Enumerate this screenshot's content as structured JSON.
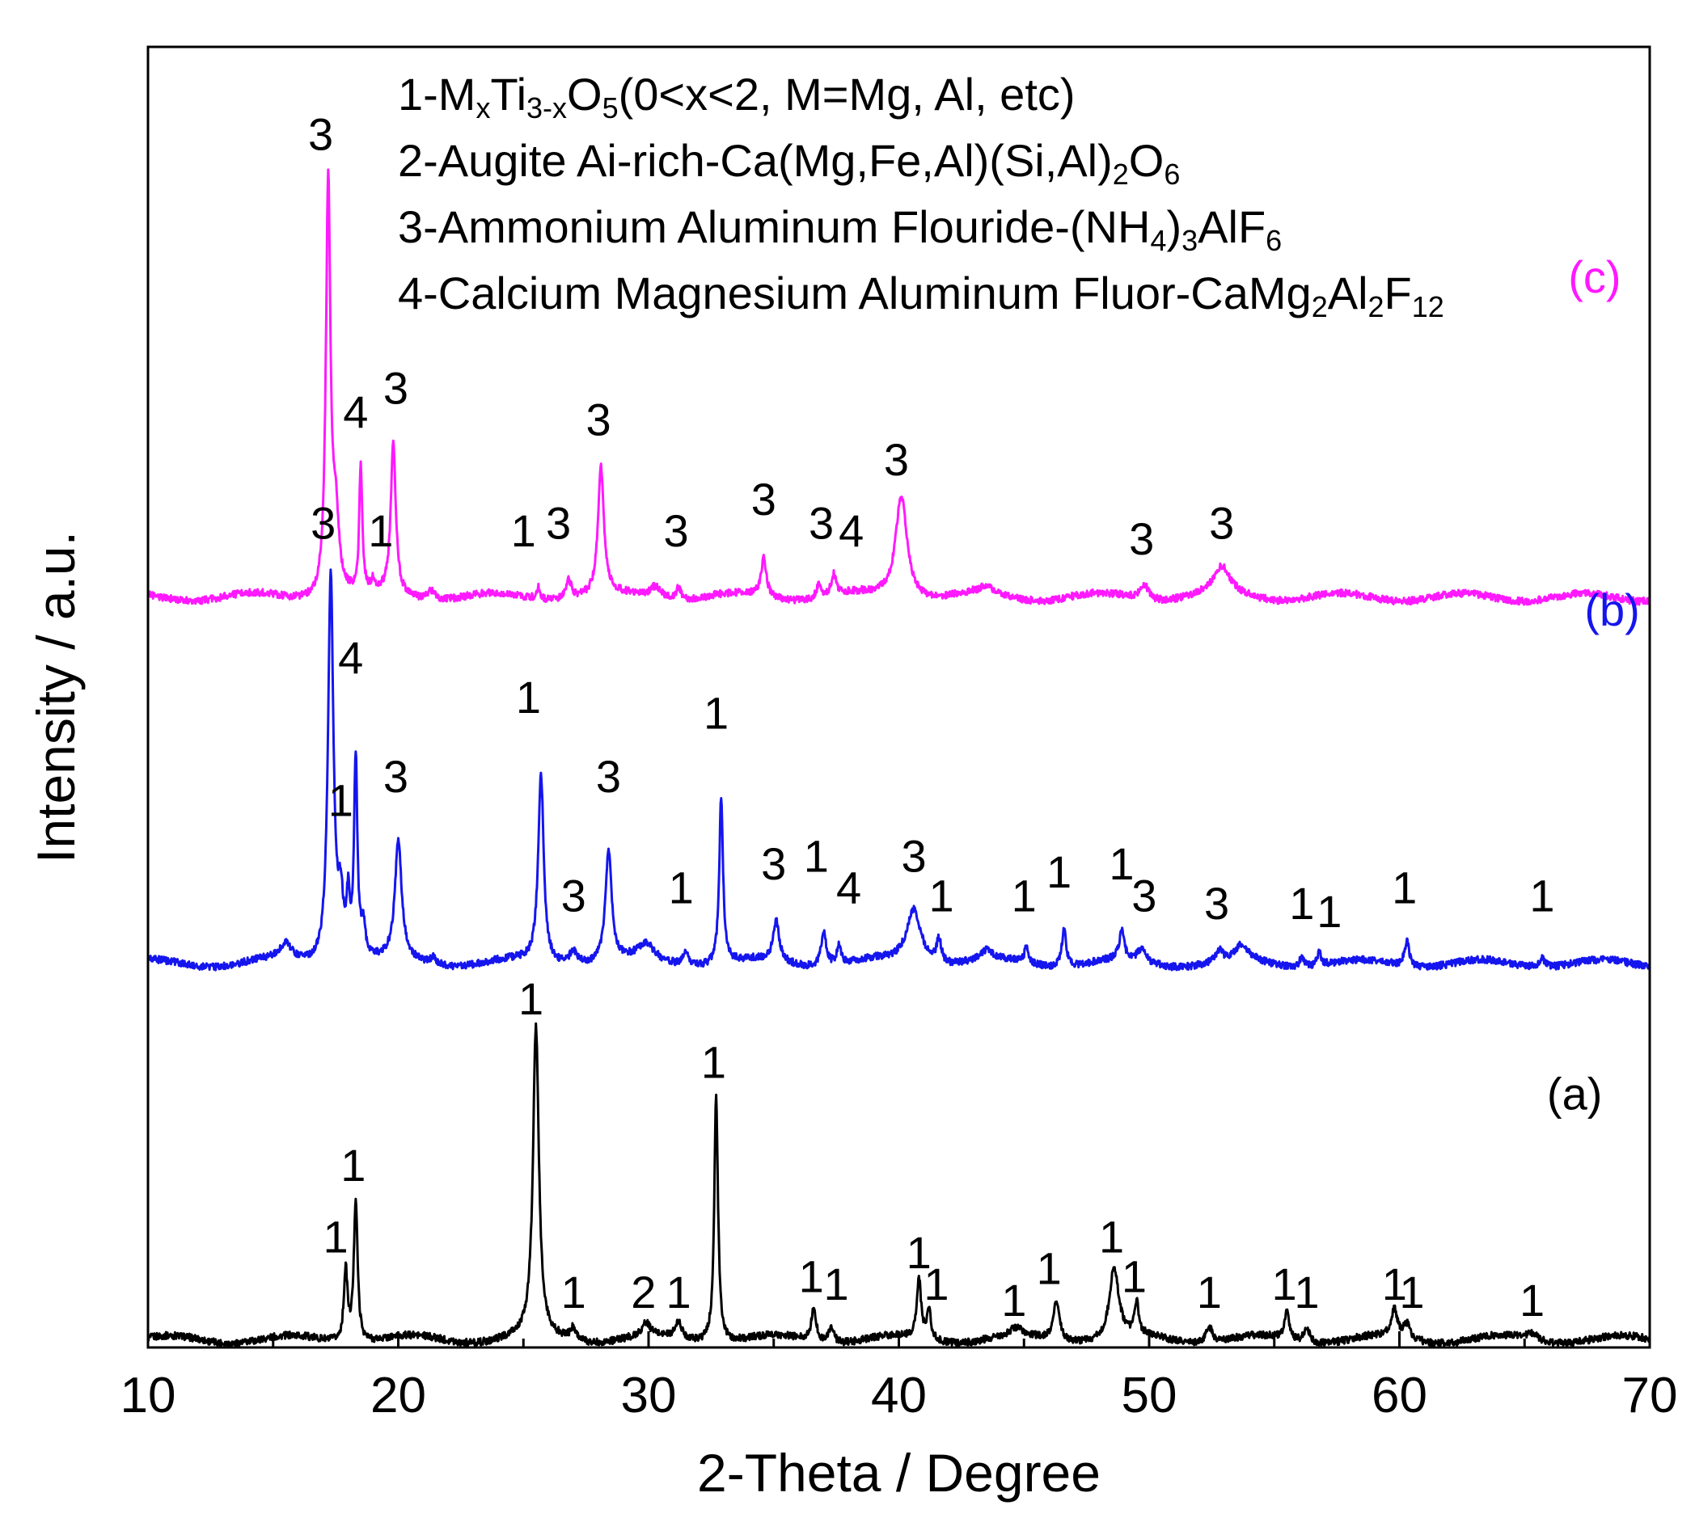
{
  "chart_data": {
    "type": "line",
    "xlabel": "2-Theta / Degree",
    "ylabel": "Intensity / a.u.",
    "xlim": [
      10,
      70
    ],
    "x_ticks": [
      10,
      20,
      30,
      40,
      50,
      60,
      70
    ],
    "y_tick_labels": "none",
    "grid": false,
    "y_scale": "offset stack (arbitrary units)",
    "legend": {
      "placement": "top",
      "lines": [
        {
          "id": "1",
          "segments": [
            {
              "t": "1-M",
              "s": "n"
            },
            {
              "t": "x",
              "s": "sub"
            },
            {
              "t": "Ti",
              "s": "n"
            },
            {
              "t": "3-x",
              "s": "sub"
            },
            {
              "t": "O",
              "s": "n"
            },
            {
              "t": "5",
              "s": "sub"
            },
            {
              "t": "(0<x<2, M=Mg, Al, etc)",
              "s": "n"
            }
          ]
        },
        {
          "id": "2",
          "segments": [
            {
              "t": "2-Augite Ai-rich-Ca(Mg,Fe,Al)(Si,Al)",
              "s": "n"
            },
            {
              "t": "2",
              "s": "sub"
            },
            {
              "t": "O",
              "s": "n"
            },
            {
              "t": "6",
              "s": "sub"
            }
          ]
        },
        {
          "id": "3",
          "segments": [
            {
              "t": "3-Ammonium Aluminum Flouride-(NH",
              "s": "n"
            },
            {
              "t": "4",
              "s": "sub"
            },
            {
              "t": ")",
              "s": "n"
            },
            {
              "t": "3",
              "s": "sub"
            },
            {
              "t": "AlF",
              "s": "n"
            },
            {
              "t": "6",
              "s": "sub"
            }
          ]
        },
        {
          "id": "4",
          "segments": [
            {
              "t": "4-Calcium Magnesium Aluminum Fluor-CaMg",
              "s": "n"
            },
            {
              "t": "2",
              "s": "sub"
            },
            {
              "t": "Al",
              "s": "n"
            },
            {
              "t": "2",
              "s": "sub"
            },
            {
              "t": "F",
              "s": "n"
            },
            {
              "t": "12",
              "s": "sub"
            }
          ]
        }
      ]
    },
    "series": [
      {
        "name": "(a)",
        "color": "#000000",
        "baseline": 0.5,
        "peaks": [
          [
            17.9,
            4.5,
            0.09
          ],
          [
            18.3,
            9.0,
            0.09
          ],
          [
            25.5,
            19.5,
            0.14
          ],
          [
            27.0,
            0.8,
            0.15
          ],
          [
            29.9,
            0.8,
            0.2
          ],
          [
            31.2,
            1.0,
            0.15
          ],
          [
            32.7,
            15.5,
            0.09
          ],
          [
            36.6,
            2.0,
            0.12
          ],
          [
            37.3,
            1.0,
            0.12
          ],
          [
            40.8,
            3.8,
            0.1
          ],
          [
            41.2,
            1.8,
            0.1
          ],
          [
            44.7,
            0.5,
            0.3
          ],
          [
            46.3,
            2.5,
            0.15
          ],
          [
            48.6,
            4.5,
            0.22
          ],
          [
            49.5,
            2.0,
            0.1
          ],
          [
            52.4,
            1.0,
            0.15
          ],
          [
            55.5,
            1.7,
            0.12
          ],
          [
            56.3,
            1.0,
            0.12
          ],
          [
            59.8,
            1.7,
            0.15
          ],
          [
            60.3,
            0.9,
            0.15
          ],
          [
            65.3,
            0.4,
            0.3
          ]
        ],
        "peak_labels": [
          {
            "x": 17.5,
            "y": 6.0,
            "text": "1"
          },
          {
            "x": 18.2,
            "y": 10.5,
            "text": "1"
          },
          {
            "x": 25.3,
            "y": 21.0,
            "text": "1"
          },
          {
            "x": 27.0,
            "y": 2.5,
            "text": "1"
          },
          {
            "x": 29.8,
            "y": 2.5,
            "text": "2"
          },
          {
            "x": 31.2,
            "y": 2.5,
            "text": "1"
          },
          {
            "x": 32.6,
            "y": 17.0,
            "text": "1"
          },
          {
            "x": 36.5,
            "y": 3.5,
            "text": "1"
          },
          {
            "x": 37.5,
            "y": 3.0,
            "text": "1"
          },
          {
            "x": 40.8,
            "y": 5.0,
            "text": "1"
          },
          {
            "x": 41.5,
            "y": 3.0,
            "text": "1"
          },
          {
            "x": 44.6,
            "y": 2.0,
            "text": "1"
          },
          {
            "x": 46.0,
            "y": 4.0,
            "text": "1"
          },
          {
            "x": 48.5,
            "y": 6.0,
            "text": "1"
          },
          {
            "x": 49.4,
            "y": 3.5,
            "text": "1"
          },
          {
            "x": 52.4,
            "y": 2.5,
            "text": "1"
          },
          {
            "x": 55.4,
            "y": 3.0,
            "text": "1"
          },
          {
            "x": 56.3,
            "y": 2.5,
            "text": "1"
          },
          {
            "x": 59.8,
            "y": 3.0,
            "text": "1"
          },
          {
            "x": 60.5,
            "y": 2.5,
            "text": "1"
          },
          {
            "x": 65.3,
            "y": 2.0,
            "text": "1"
          }
        ],
        "trace_label": {
          "x": 67.0,
          "y": 15.0,
          "text": "(a)"
        }
      },
      {
        "name": "(b)",
        "color": "#1515ee",
        "baseline": 24.2,
        "peaks": [
          [
            15.5,
            1.0,
            0.3
          ],
          [
            17.3,
            24.5,
            0.13
          ],
          [
            17.7,
            3.5,
            0.12
          ],
          [
            18.0,
            3.5,
            0.08
          ],
          [
            18.3,
            12.5,
            0.08
          ],
          [
            18.6,
            2.0,
            0.1
          ],
          [
            20.0,
            7.5,
            0.16
          ],
          [
            21.4,
            0.4,
            0.15
          ],
          [
            25.7,
            12.0,
            0.13
          ],
          [
            27.0,
            0.9,
            0.2
          ],
          [
            28.4,
            7.0,
            0.15
          ],
          [
            29.9,
            1.0,
            0.4
          ],
          [
            31.5,
            1.0,
            0.12
          ],
          [
            32.9,
            10.5,
            0.09
          ],
          [
            35.1,
            2.5,
            0.15
          ],
          [
            37.0,
            2.2,
            0.12
          ],
          [
            37.6,
            1.2,
            0.1
          ],
          [
            40.6,
            3.5,
            0.35
          ],
          [
            41.6,
            1.5,
            0.12
          ],
          [
            43.5,
            0.6,
            0.3
          ],
          [
            45.1,
            1.0,
            0.1
          ],
          [
            46.6,
            2.5,
            0.1
          ],
          [
            48.9,
            1.8,
            0.12
          ],
          [
            49.7,
            0.8,
            0.2
          ],
          [
            52.8,
            0.7,
            0.15
          ],
          [
            53.7,
            1.0,
            0.3
          ],
          [
            56.1,
            0.6,
            0.12
          ],
          [
            56.8,
            0.8,
            0.1
          ],
          [
            60.3,
            1.6,
            0.12
          ],
          [
            65.7,
            0.6,
            0.15
          ]
        ],
        "peak_labels": [
          {
            "x": 17.0,
            "y": 51.0,
            "text": "3"
          },
          {
            "x": 17.7,
            "y": 33.5,
            "text": "1"
          },
          {
            "x": 18.1,
            "y": 42.5,
            "text": "4"
          },
          {
            "x": 19.9,
            "y": 35.0,
            "text": "3"
          },
          {
            "x": 25.2,
            "y": 40.0,
            "text": "1"
          },
          {
            "x": 27.0,
            "y": 27.5,
            "text": "3"
          },
          {
            "x": 28.4,
            "y": 35.0,
            "text": "3"
          },
          {
            "x": 31.3,
            "y": 28.0,
            "text": "1"
          },
          {
            "x": 32.7,
            "y": 39.0,
            "text": "1"
          },
          {
            "x": 35.0,
            "y": 29.5,
            "text": "3"
          },
          {
            "x": 36.7,
            "y": 30.0,
            "text": "1"
          },
          {
            "x": 38.0,
            "y": 28.0,
            "text": "4"
          },
          {
            "x": 40.6,
            "y": 30.0,
            "text": "3"
          },
          {
            "x": 41.7,
            "y": 27.5,
            "text": "1"
          },
          {
            "x": 45.0,
            "y": 27.5,
            "text": "1"
          },
          {
            "x": 46.4,
            "y": 29.0,
            "text": "1"
          },
          {
            "x": 48.9,
            "y": 29.5,
            "text": "1"
          },
          {
            "x": 49.8,
            "y": 27.5,
            "text": "3"
          },
          {
            "x": 52.7,
            "y": 27.0,
            "text": "3"
          },
          {
            "x": 56.1,
            "y": 27.0,
            "text": "1"
          },
          {
            "x": 57.2,
            "y": 26.5,
            "text": "1"
          },
          {
            "x": 60.2,
            "y": 28.0,
            "text": "1"
          },
          {
            "x": 65.7,
            "y": 27.5,
            "text": "1"
          }
        ],
        "trace_label": {
          "x": 68.5,
          "y": 45.5,
          "text": "(b)"
        }
      },
      {
        "name": "(c)",
        "color": "#ff19ff",
        "baseline": 47.3,
        "peaks": [
          [
            17.2,
            26.0,
            0.11
          ],
          [
            17.5,
            4.5,
            0.15
          ],
          [
            18.5,
            8.0,
            0.07
          ],
          [
            19.0,
            0.6,
            0.08
          ],
          [
            19.8,
            9.5,
            0.12
          ],
          [
            21.3,
            0.6,
            0.2
          ],
          [
            25.6,
            0.8,
            0.08
          ],
          [
            26.8,
            1.2,
            0.15
          ],
          [
            28.1,
            8.0,
            0.14
          ],
          [
            30.3,
            0.8,
            0.3
          ],
          [
            31.2,
            0.8,
            0.1
          ],
          [
            34.6,
            2.4,
            0.13
          ],
          [
            36.8,
            0.9,
            0.1
          ],
          [
            37.4,
            1.3,
            0.12
          ],
          [
            40.1,
            6.5,
            0.28
          ],
          [
            43.5,
            0.4,
            0.4
          ],
          [
            49.8,
            1.0,
            0.2
          ],
          [
            52.9,
            1.7,
            0.4
          ]
        ],
        "peak_labels": [
          {
            "x": 16.9,
            "y": 75.5,
            "text": "3"
          },
          {
            "x": 18.3,
            "y": 58.0,
            "text": "4"
          },
          {
            "x": 19.3,
            "y": 50.5,
            "text": "1"
          },
          {
            "x": 19.9,
            "y": 59.5,
            "text": "3"
          },
          {
            "x": 25.0,
            "y": 50.5,
            "text": "1"
          },
          {
            "x": 26.4,
            "y": 51.0,
            "text": "3"
          },
          {
            "x": 28.0,
            "y": 57.5,
            "text": "3"
          },
          {
            "x": 31.1,
            "y": 50.5,
            "text": "3"
          },
          {
            "x": 34.6,
            "y": 52.5,
            "text": "3"
          },
          {
            "x": 36.9,
            "y": 51.0,
            "text": "3"
          },
          {
            "x": 38.1,
            "y": 50.5,
            "text": "4"
          },
          {
            "x": 39.9,
            "y": 55.0,
            "text": "3"
          },
          {
            "x": 49.7,
            "y": 50.0,
            "text": "3"
          },
          {
            "x": 52.9,
            "y": 51.0,
            "text": "3"
          }
        ],
        "trace_label": {
          "x": 67.8,
          "y": 66.5,
          "text": "(c)"
        }
      }
    ]
  }
}
